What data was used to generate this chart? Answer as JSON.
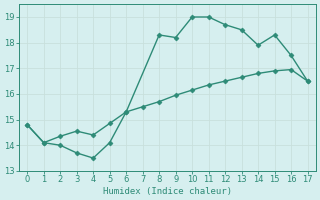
{
  "line1_x": [
    0,
    1,
    2,
    3,
    4,
    5,
    6,
    8,
    9,
    10,
    11,
    12,
    13,
    14,
    15,
    16,
    17
  ],
  "line1_y": [
    14.8,
    14.1,
    14.0,
    13.7,
    13.5,
    14.1,
    15.3,
    18.3,
    18.2,
    19.0,
    19.0,
    18.7,
    18.5,
    17.9,
    18.3,
    17.5,
    16.5
  ],
  "line2_x": [
    0,
    1,
    2,
    3,
    4,
    5,
    6,
    7,
    8,
    9,
    10,
    11,
    12,
    13,
    14,
    15,
    16,
    17
  ],
  "line2_y": [
    14.8,
    14.1,
    14.35,
    14.55,
    14.4,
    14.85,
    15.3,
    15.5,
    15.7,
    15.95,
    16.15,
    16.35,
    16.5,
    16.65,
    16.8,
    16.9,
    16.95,
    16.5
  ],
  "color": "#2E8B77",
  "bg_color": "#D6EFEF",
  "grid_color": "#C8E0DC",
  "xlabel": "Humidex (Indice chaleur)",
  "xlim": [
    -0.5,
    17.5
  ],
  "ylim": [
    13,
    19.5
  ],
  "yticks": [
    13,
    14,
    15,
    16,
    17,
    18,
    19
  ],
  "xticks": [
    0,
    1,
    2,
    3,
    4,
    5,
    6,
    7,
    8,
    9,
    10,
    11,
    12,
    13,
    14,
    15,
    16,
    17
  ],
  "marker": "D",
  "markersize": 2.5,
  "linewidth": 1.0
}
